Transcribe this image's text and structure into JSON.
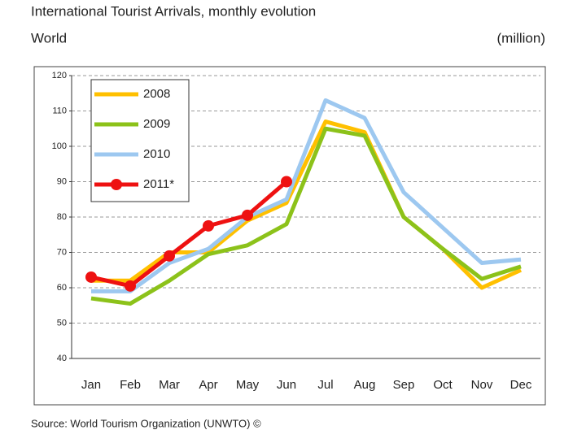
{
  "chart_data": {
    "type": "line",
    "title": "International Tourist Arrivals, monthly evolution",
    "subtitle": "World",
    "y_label": "(million)",
    "source": "Source: World Tourism Organization (UNWTO) ©",
    "categories": [
      "Jan",
      "Feb",
      "Mar",
      "Apr",
      "May",
      "Jun",
      "Jul",
      "Aug",
      "Sep",
      "Oct",
      "Nov",
      "Dec"
    ],
    "series": [
      {
        "name": "2008",
        "color": "#ffc000",
        "values": [
          62,
          62,
          70,
          70,
          79,
          84,
          107,
          104,
          80,
          71,
          60,
          65
        ]
      },
      {
        "name": "2009",
        "color": "#8cc21a",
        "values": [
          57,
          55.5,
          62,
          69.5,
          72,
          78,
          105,
          103,
          80,
          71,
          62.5,
          66
        ]
      },
      {
        "name": "2010",
        "color": "#9dc8f0",
        "values": [
          59,
          59,
          67,
          71,
          80,
          85,
          113,
          108,
          87,
          77,
          67,
          68
        ]
      },
      {
        "name": "2011*",
        "color": "#ee1111",
        "marker": true,
        "values": [
          63,
          60.5,
          69,
          77.5,
          80.5,
          90,
          null,
          null,
          null,
          null,
          null,
          null
        ]
      }
    ],
    "ylim": [
      40,
      120
    ],
    "yticks": [
      40,
      50,
      60,
      70,
      80,
      90,
      100,
      110,
      120
    ],
    "grid": true,
    "legend": "upper left"
  }
}
